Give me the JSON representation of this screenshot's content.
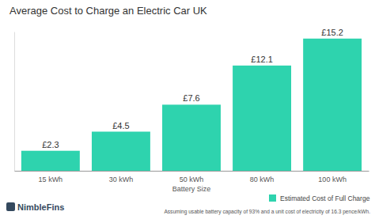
{
  "chart_data": {
    "type": "bar",
    "title": "Average Cost to Charge an Electric Car UK",
    "x_label": "Battery Size",
    "categories": [
      "15 kWh",
      "30 kWh",
      "50 kWh",
      "80 kWh",
      "100 kWh"
    ],
    "series": [
      {
        "name": "Estimated Cost of Full Charge",
        "color": "#2ed3ae",
        "values": [
          2.3,
          4.5,
          7.6,
          12.1,
          15.2
        ],
        "value_labels": [
          "£2.3",
          "£4.5",
          "£7.6",
          "£12.1",
          "£15.2"
        ]
      }
    ],
    "ylim": [
      0,
      16
    ],
    "yticks": [],
    "grid": false,
    "data_labels": true,
    "tick_labels": "x",
    "legend": "bottom-right",
    "annotations": [
      "NimbleFins",
      "Assuming usable battery capacity of 93% and a unit cost of electricity of 16.3 pence/kWh."
    ]
  }
}
